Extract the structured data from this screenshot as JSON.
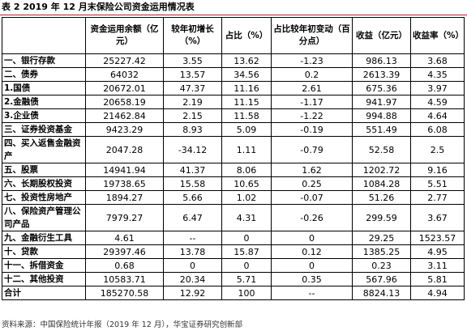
{
  "caption": "表 2 2019 年 12 月末保险公司资金运用情况表",
  "headers": {
    "category": "",
    "balance": "资金运用余额（亿元）",
    "growth": "较年初增长（%）",
    "share": "占比（%）",
    "share_change": "占比较年初变动（百分点）",
    "income": "收益（亿元）",
    "yield": "收益率（%）"
  },
  "rows": [
    {
      "name": "一、银行存款",
      "balance": "25227.42",
      "growth": "3.55",
      "share": "13.62",
      "share_change": "-1.23",
      "income": "986.13",
      "yield": "3.68"
    },
    {
      "name": "二、债券",
      "balance": "64032",
      "growth": "13.57",
      "share": "34.56",
      "share_change": "0.2",
      "income": "2613.39",
      "yield": "4.35"
    },
    {
      "name": "1.国债",
      "balance": "20672.01",
      "growth": "47.37",
      "share": "11.16",
      "share_change": "2.61",
      "income": "675.36",
      "yield": "3.97"
    },
    {
      "name": "2.金融债",
      "balance": "20658.19",
      "growth": "2.19",
      "share": "11.15",
      "share_change": "-1.17",
      "income": "941.97",
      "yield": "4.59"
    },
    {
      "name": "3.企业债",
      "balance": "21462.84",
      "growth": "2.15",
      "share": "11.58",
      "share_change": "-1.22",
      "income": "994.88",
      "yield": "4.64"
    },
    {
      "name": "三、证券投资基金",
      "balance": "9423.29",
      "growth": "8.93",
      "share": "5.09",
      "share_change": "-0.19",
      "income": "551.49",
      "yield": "6.08"
    },
    {
      "name": "四、买入返售金融资产",
      "balance": "2047.28",
      "growth": "-34.12",
      "share": "1.11",
      "share_change": "-0.79",
      "income": "52.58",
      "yield": "2.5",
      "tall": true
    },
    {
      "name": "五、股票",
      "balance": "14941.94",
      "growth": "41.37",
      "share": "8.06",
      "share_change": "1.62",
      "income": "1202.72",
      "yield": "9.16"
    },
    {
      "name": "六、长期股权投资",
      "balance": "19738.65",
      "growth": "15.58",
      "share": "10.65",
      "share_change": "0.25",
      "income": "1084.28",
      "yield": "5.51"
    },
    {
      "name": "七、投资性房地产",
      "balance": "1894.27",
      "growth": "5.66",
      "share": "1.02",
      "share_change": "-0.07",
      "income": "51.26",
      "yield": "2.77"
    },
    {
      "name": "八、保险资产管理公司产品",
      "balance": "7979.27",
      "growth": "6.47",
      "share": "4.31",
      "share_change": "-0.26",
      "income": "299.59",
      "yield": "3.67",
      "tall": true
    },
    {
      "name": "九、金融衍生工具",
      "balance": "4.61",
      "growth": "--",
      "share": "0",
      "share_change": "0",
      "income": "29.25",
      "yield": "1523.57"
    },
    {
      "name": "十、贷款",
      "balance": "29397.46",
      "growth": "13.78",
      "share": "15.87",
      "share_change": "0.12",
      "income": "1385.25",
      "yield": "4.95"
    },
    {
      "name": "十一、拆借资金",
      "balance": "0.68",
      "growth": "0",
      "share": "0",
      "share_change": "0",
      "income": "0.23",
      "yield": "3.11"
    },
    {
      "name": "十二、其他投资",
      "balance": "10583.71",
      "growth": "20.34",
      "share": "5.71",
      "share_change": "0.35",
      "income": "567.96",
      "yield": "5.81"
    },
    {
      "name": "合计",
      "balance": "185270.58",
      "growth": "12.92",
      "share": "100",
      "share_change": "--",
      "income": "8824.13",
      "yield": "4.94"
    }
  ],
  "footnote": "资料来源：中国保险统计年报（2019 年 12 月），华宝证券研究创新部"
}
